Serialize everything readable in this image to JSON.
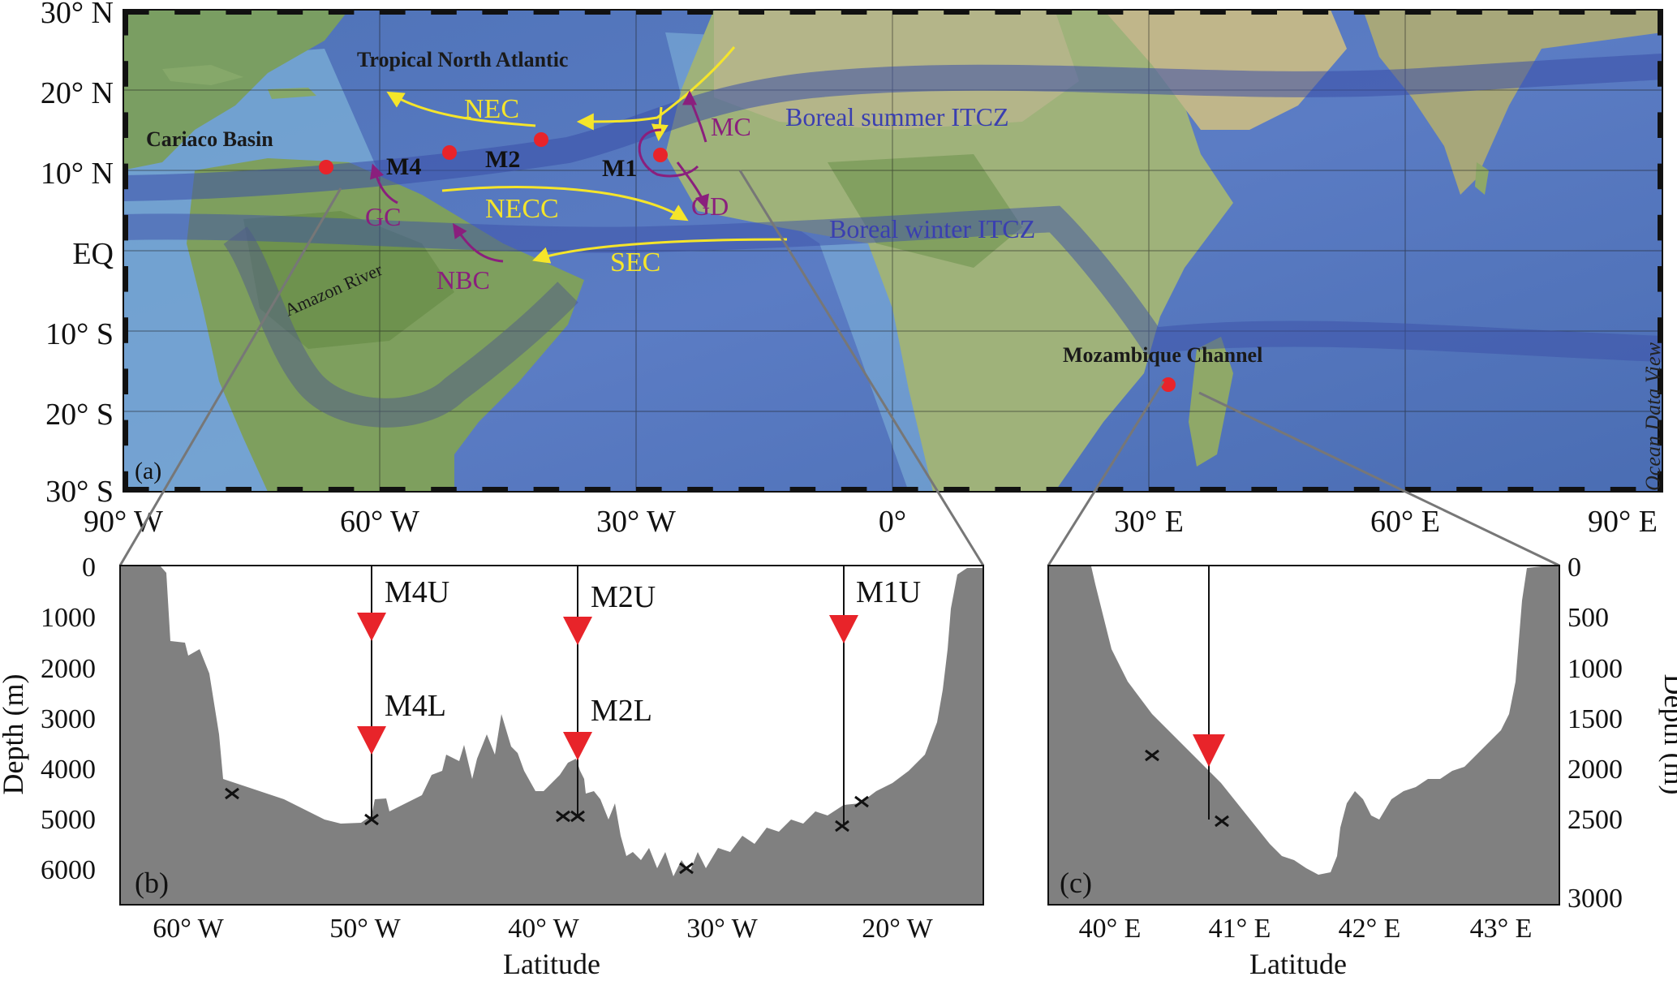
{
  "map": {
    "panel_label": "(a)",
    "watermark": "Ocean Data View",
    "lat_ticks": [
      "30° N",
      "20° N",
      "10° N",
      "EQ",
      "10°  S",
      "20°  S",
      "30° S"
    ],
    "lon_ticks": [
      "90° W",
      "60° W",
      "30° W",
      "0°",
      "30° E",
      "60° E",
      "90° E"
    ],
    "regions": {
      "tna": "Tropical North Atlantic",
      "cariaco": "Cariaco Basin",
      "mozambique": "Mozambique Channel",
      "amazon": "Amazon River"
    },
    "moorings": {
      "m4": "M4",
      "m2": "M2",
      "m1": "M1"
    },
    "currents": {
      "nec": "NEC",
      "necc": "NECC",
      "sec": "SEC",
      "mc": "MC",
      "gd": "GD",
      "gc": "GC",
      "nbc": "NBC"
    },
    "itcz": {
      "summer": "Boreal summer ITCZ",
      "winter": "Boreal winter ITCZ"
    },
    "colors": {
      "current_yellow": "#f5e52a",
      "current_purple": "#8a1f7d",
      "itcz_text": "#3a3fb0",
      "site_red": "#e8242a"
    }
  },
  "panel_b": {
    "panel_label": "(b)",
    "ylabel": "Depth (m)",
    "xlabel": "Latitude",
    "yticks": [
      "0",
      "1000",
      "2000",
      "3000",
      "4000",
      "5000",
      "6000"
    ],
    "xticks": [
      "60° W",
      "50° W",
      "40° W",
      "30° W",
      "20° W"
    ],
    "traps": {
      "m4u": "M4U",
      "m4l": "M4L",
      "m2u": "M2U",
      "m2l": "M2L",
      "m1u": "M1U"
    }
  },
  "panel_c": {
    "panel_label": "(c)",
    "ylabel": "Depth (m)",
    "xlabel": "Latitude",
    "yticks": [
      "0",
      "500",
      "1000",
      "1500",
      "2000",
      "2500",
      "3000"
    ],
    "xticks": [
      "40° E",
      "41° E",
      "42° E",
      "43° E"
    ]
  }
}
